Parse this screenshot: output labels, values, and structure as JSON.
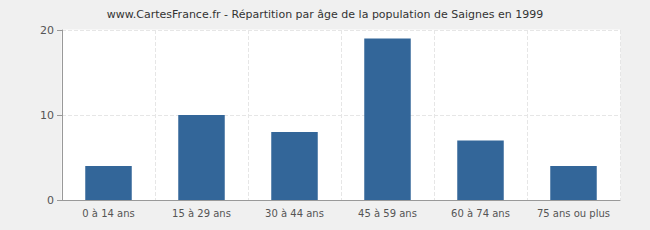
{
  "chart_data": {
    "type": "bar",
    "title": "www.CartesFrance.fr - Répartition par âge de la population de Saignes en 1999",
    "categories": [
      "0 à 14 ans",
      "15 à 29 ans",
      "30 à 44 ans",
      "45 à 59 ans",
      "60 à 74 ans",
      "75 ans ou plus"
    ],
    "values": [
      4,
      10,
      8,
      19,
      7,
      4
    ],
    "color": "#336699",
    "ylim": [
      0,
      20
    ],
    "yticks": [
      0,
      10,
      20
    ],
    "grid": true
  }
}
